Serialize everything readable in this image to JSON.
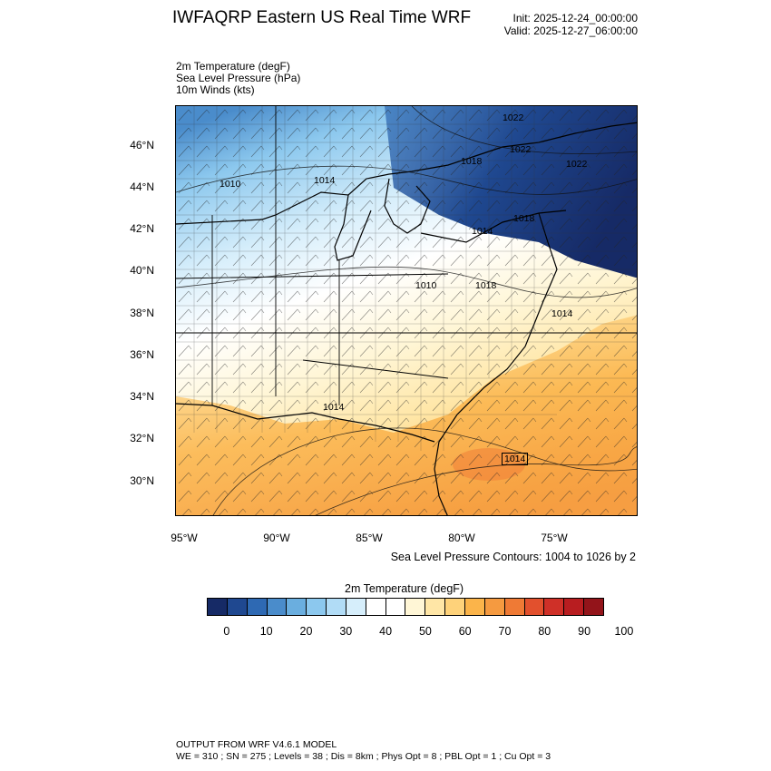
{
  "header": {
    "title": "IWFAQRP Eastern US Real Time WRF",
    "init": "Init: 2025-12-24_00:00:00",
    "valid": "Valid: 2025-12-27_06:00:00"
  },
  "fields": {
    "temperature": "2m Temperature   (degF)",
    "pressure": "Sea Level Pressure   (hPa)",
    "winds": "10m Winds   (kts)"
  },
  "map": {
    "region": "Eastern United States",
    "lat_labels": [
      "46°N",
      "44°N",
      "42°N",
      "40°N",
      "38°N",
      "36°N",
      "34°N",
      "32°N",
      "30°N"
    ],
    "lon_labels": [
      "95°W",
      "90°W",
      "85°W",
      "80°W",
      "75°W"
    ],
    "isobar_labels": [
      "1022",
      "1022",
      "1018",
      "1022",
      "1010",
      "1014",
      "1018",
      "1014",
      "1010",
      "1018",
      "1014",
      "1014",
      "1014"
    ],
    "colors": {
      "cold": "#1a3a7a",
      "cool": "#a8d6f5",
      "mild": "#ffffff",
      "warm": "#f7c15a",
      "hot": "#f08a3a"
    }
  },
  "contour_note": "Sea Level Pressure Contours: 1004 to 1026 by 2",
  "colorbar": {
    "title": "2m Temperature   (degF)",
    "colors": [
      "#162a66",
      "#1f4890",
      "#2e69b3",
      "#4a8ccb",
      "#6aaedf",
      "#8cc8ee",
      "#b1dcf6",
      "#d6eefb",
      "#ffffff",
      "#ffffff",
      "#fff6d6",
      "#ffe6a6",
      "#fed27a",
      "#fbb44a",
      "#f59a40",
      "#ef7a35",
      "#e2502d",
      "#cf3028",
      "#b81d20",
      "#93141a"
    ],
    "ticks": [
      "0",
      "10",
      "20",
      "30",
      "40",
      "50",
      "60",
      "70",
      "80",
      "90",
      "100"
    ]
  },
  "footer": {
    "line1": "OUTPUT FROM WRF V4.6.1 MODEL",
    "line2": "WE = 310 ; SN = 275 ; Levels = 38 ; Dis = 8km ; Phys Opt = 8 ; PBL Opt = 1 ; Cu Opt = 3"
  }
}
